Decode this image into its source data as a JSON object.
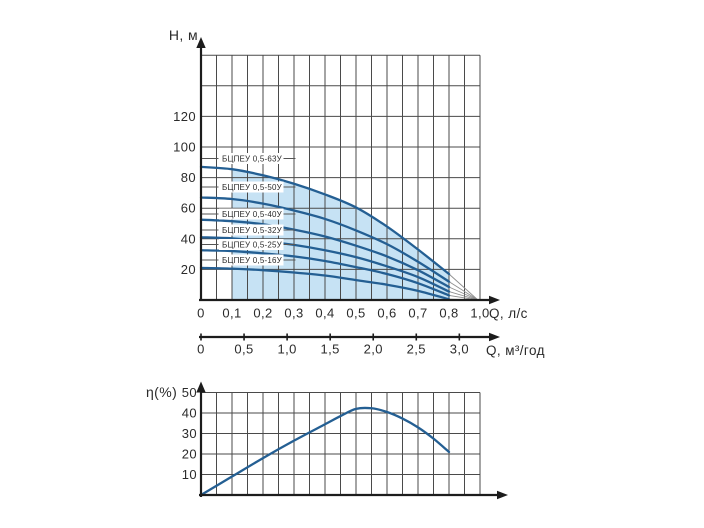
{
  "labels": {
    "h_axis": "Н, м",
    "q_lps": "Q, л/с",
    "q_m3h": "Q, м³/год",
    "eta": "η(%)"
  },
  "colors": {
    "curve": "#245f93",
    "region_fill": "#c6e2f4",
    "grid": "#4a4a4a",
    "axis": "#1c1c1c",
    "fan_lines": "#8f8f8f",
    "text": "#2b2b2b",
    "label_bg": "#ffffff",
    "leader": "#555555"
  },
  "chart_data": [
    {
      "id": "head_vs_flow",
      "type": "line",
      "ylabel": "Н, м",
      "xlabel": "Q, л/с",
      "xlabel_secondary": "Q, м³/год",
      "ylim": [
        0,
        160
      ],
      "xlim": [
        0,
        1.0
      ],
      "grid": true,
      "legend_position": "labels-on-curves",
      "y_ticks": [
        {
          "value": 20,
          "label": "20"
        },
        {
          "value": 40,
          "label": "40"
        },
        {
          "value": 60,
          "label": "60"
        },
        {
          "value": 80,
          "label": "80"
        },
        {
          "value": 100,
          "label": "100"
        },
        {
          "value": 120,
          "label": "120"
        }
      ],
      "x_ticks_lps": [
        {
          "value": 0,
          "label": "0"
        },
        {
          "value": 0.1,
          "label": "0,1"
        },
        {
          "value": 0.2,
          "label": "0,2"
        },
        {
          "value": 0.3,
          "label": "0,3"
        },
        {
          "value": 0.4,
          "label": "0,4"
        },
        {
          "value": 0.5,
          "label": "0,5"
        },
        {
          "value": 0.6,
          "label": "0,6"
        },
        {
          "value": 0.7,
          "label": "0,7"
        },
        {
          "value": 0.8,
          "label": "0,8"
        },
        {
          "value": 1.0,
          "label": "1,0"
        }
      ],
      "x_ticks_m3h": [
        {
          "value": 0,
          "label": "0"
        },
        {
          "value": 0.5,
          "label": "0,5"
        },
        {
          "value": 1.0,
          "label": "1,0"
        },
        {
          "value": 1.5,
          "label": "1,5"
        },
        {
          "value": 2.0,
          "label": "2,0"
        },
        {
          "value": 2.5,
          "label": "2,5"
        },
        {
          "value": 3.0,
          "label": "3,0"
        }
      ],
      "x": [
        0,
        0.1,
        0.2,
        0.3,
        0.4,
        0.5,
        0.6,
        0.7,
        0.8
      ],
      "series": [
        {
          "name": "БЦПЕУ 0,5-63У",
          "values": [
            87,
            85.5,
            81.5,
            76,
            69,
            60.5,
            48,
            33,
            17
          ]
        },
        {
          "name": "БЦПЕУ 0,5-50У",
          "values": [
            67,
            66,
            63,
            58.5,
            53,
            45.5,
            36.5,
            25,
            12
          ]
        },
        {
          "name": "БЦПЕУ 0,5-40У",
          "values": [
            52.5,
            51.5,
            49.5,
            46,
            41.5,
            35.5,
            28.5,
            19.5,
            8.5
          ]
        },
        {
          "name": "БЦПЕУ 0,5-32У",
          "values": [
            41,
            40.3,
            38.5,
            36,
            32.5,
            28,
            22,
            15,
            5.5
          ]
        },
        {
          "name": "БЦПЕУ 0,5-25У",
          "values": [
            32.5,
            32,
            30.5,
            28.5,
            25.5,
            21.5,
            17,
            11,
            3
          ]
        },
        {
          "name": "БЦПЕУ 0,5-16У",
          "values": [
            21,
            20.5,
            19.5,
            18,
            16,
            13,
            10,
            6,
            0.5
          ]
        }
      ],
      "curves_converge_at": {
        "q": 1.0,
        "h": 0
      },
      "shaded_operating_region": {
        "q_from": 0.1,
        "q_to": 0.8
      }
    },
    {
      "id": "efficiency",
      "type": "line",
      "ylabel": "η(%)",
      "ylim": [
        0,
        50
      ],
      "xlim": [
        0,
        1.0
      ],
      "grid": true,
      "y_ticks": [
        {
          "value": 10,
          "label": "10"
        },
        {
          "value": 20,
          "label": "20"
        },
        {
          "value": 30,
          "label": "30"
        },
        {
          "value": 40,
          "label": "40"
        },
        {
          "value": 50,
          "label": "50"
        }
      ],
      "points": [
        [
          0,
          0
        ],
        [
          0.1,
          9
        ],
        [
          0.2,
          18
        ],
        [
          0.3,
          26.5
        ],
        [
          0.4,
          34.5
        ],
        [
          0.45,
          38.5
        ],
        [
          0.5,
          42
        ],
        [
          0.55,
          42.3
        ],
        [
          0.6,
          40.5
        ],
        [
          0.65,
          37.3
        ],
        [
          0.7,
          33
        ],
        [
          0.75,
          27.5
        ],
        [
          0.8,
          21
        ]
      ]
    }
  ]
}
